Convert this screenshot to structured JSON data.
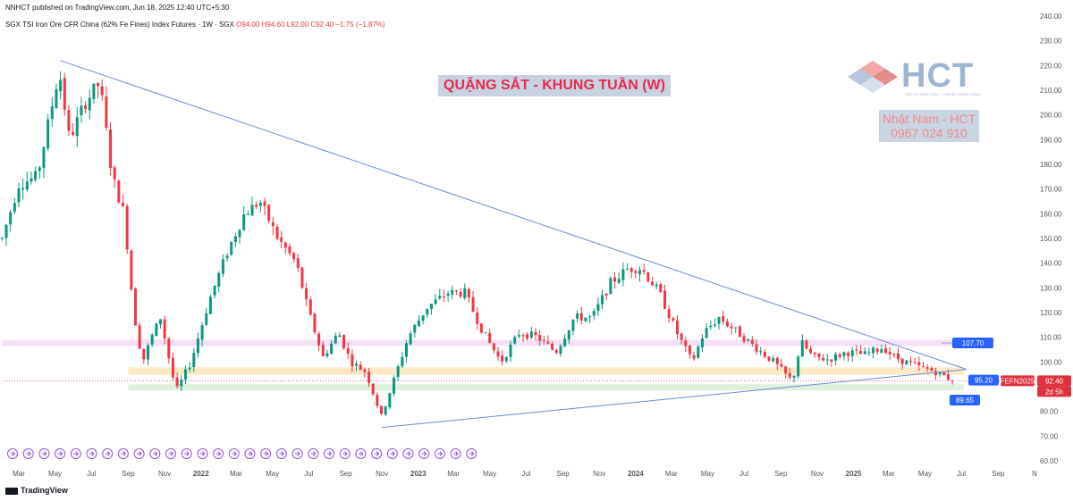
{
  "header": {
    "published": "NNHCT published on TradingView.com, Jun 18, 2025 12:40 UTC+5:30"
  },
  "legend": {
    "symbol": "SGX TSI Iron Ore CFR China (62% Fe Fines) Index Futures · 1W · SGX",
    "open": "O94.00",
    "high": "H94.60",
    "low": "L92.00",
    "close": "C92.40",
    "change": "−1.75 (−1.87%)"
  },
  "headline": "QUẶNG SẮT - KHUNG TUẦN (W)",
  "brand": {
    "name": "HCT",
    "tagline": "ĐẦU TƯ HÀNG HÓA - CHIA SẺ THÀNH CÔNG",
    "contact_name": "Nhật Nam - HCT",
    "contact_phone": "0967 024 910"
  },
  "footer": {
    "logo_text": "TradingView"
  },
  "colors": {
    "up": "#089981",
    "down": "#f23645",
    "trendline": "#6b8cd8",
    "band_pink": "#f3d6f3",
    "band_orange": "#fde2b3",
    "band_green": "#d2ebd0",
    "label_blue": "#2962ff",
    "price_red": "#e0313f",
    "event_icon": "#8e57d6"
  },
  "chart_data": {
    "type": "candlestick",
    "timeframe": "1W",
    "y_axis": {
      "ylim": [
        60,
        240
      ],
      "ticks": [
        "240.00",
        "230.00",
        "220.00",
        "210.00",
        "200.00",
        "190.00",
        "180.00",
        "170.00",
        "160.00",
        "150.00",
        "140.00",
        "130.00",
        "120.00",
        "110.00",
        "100.00",
        "90.00",
        "80.00",
        "70.00",
        "60.00"
      ]
    },
    "x_axis": {
      "ticks": [
        {
          "label": "Mar",
          "date": "2021-03-01",
          "bold": false
        },
        {
          "label": "May",
          "date": "2021-05-01",
          "bold": false
        },
        {
          "label": "Jul",
          "date": "2021-07-01",
          "bold": false
        },
        {
          "label": "Sep",
          "date": "2021-09-01",
          "bold": false
        },
        {
          "label": "Nov",
          "date": "2021-11-01",
          "bold": false
        },
        {
          "label": "2022",
          "date": "2022-01-01",
          "bold": true
        },
        {
          "label": "Mar",
          "date": "2022-03-01",
          "bold": false
        },
        {
          "label": "May",
          "date": "2022-05-01",
          "bold": false
        },
        {
          "label": "Jul",
          "date": "2022-07-01",
          "bold": false
        },
        {
          "label": "Sep",
          "date": "2022-09-01",
          "bold": false
        },
        {
          "label": "Nov",
          "date": "2022-11-01",
          "bold": false
        },
        {
          "label": "2023",
          "date": "2023-01-01",
          "bold": true
        },
        {
          "label": "Mar",
          "date": "2023-03-01",
          "bold": false
        },
        {
          "label": "May",
          "date": "2023-05-01",
          "bold": false
        },
        {
          "label": "Jul",
          "date": "2023-07-01",
          "bold": false
        },
        {
          "label": "Sep",
          "date": "2023-09-01",
          "bold": false
        },
        {
          "label": "Nov",
          "date": "2023-11-01",
          "bold": false
        },
        {
          "label": "2024",
          "date": "2024-01-01",
          "bold": true
        },
        {
          "label": "Mar",
          "date": "2024-03-01",
          "bold": false
        },
        {
          "label": "May",
          "date": "2024-05-01",
          "bold": false
        },
        {
          "label": "Jul",
          "date": "2024-07-01",
          "bold": false
        },
        {
          "label": "Sep",
          "date": "2024-09-01",
          "bold": false
        },
        {
          "label": "Nov",
          "date": "2024-11-01",
          "bold": false
        },
        {
          "label": "2025",
          "date": "2025-01-01",
          "bold": true
        },
        {
          "label": "Mar",
          "date": "2025-03-01",
          "bold": false
        },
        {
          "label": "May",
          "date": "2025-05-01",
          "bold": false
        },
        {
          "label": "Jul",
          "date": "2025-07-01",
          "bold": false
        },
        {
          "label": "Sep",
          "date": "2025-09-01",
          "bold": false
        },
        {
          "label": "N",
          "date": "2025-11-01",
          "bold": false
        }
      ]
    },
    "price_path": [
      [
        "2021-02-01",
        150
      ],
      [
        "2021-03-01",
        172
      ],
      [
        "2021-04-01",
        175
      ],
      [
        "2021-05-08",
        218
      ],
      [
        "2021-05-25",
        190
      ],
      [
        "2021-06-20",
        205
      ],
      [
        "2021-07-15",
        213
      ],
      [
        "2021-08-05",
        175
      ],
      [
        "2021-08-25",
        160
      ],
      [
        "2021-09-10",
        120
      ],
      [
        "2021-09-25",
        100
      ],
      [
        "2021-10-10",
        110
      ],
      [
        "2021-10-25",
        118
      ],
      [
        "2021-11-20",
        88
      ],
      [
        "2021-12-15",
        100
      ],
      [
        "2022-01-15",
        125
      ],
      [
        "2022-02-15",
        145
      ],
      [
        "2022-03-15",
        160
      ],
      [
        "2022-04-10",
        165
      ],
      [
        "2022-05-10",
        150
      ],
      [
        "2022-06-10",
        140
      ],
      [
        "2022-07-01",
        120
      ],
      [
        "2022-07-25",
        102
      ],
      [
        "2022-08-20",
        112
      ],
      [
        "2022-09-10",
        100
      ],
      [
        "2022-10-05",
        96
      ],
      [
        "2022-10-31",
        78
      ],
      [
        "2022-11-20",
        92
      ],
      [
        "2022-12-15",
        110
      ],
      [
        "2023-01-15",
        122
      ],
      [
        "2023-02-20",
        128
      ],
      [
        "2023-03-20",
        128
      ],
      [
        "2023-04-20",
        112
      ],
      [
        "2023-05-20",
        100
      ],
      [
        "2023-06-20",
        112
      ],
      [
        "2023-07-20",
        110
      ],
      [
        "2023-08-20",
        104
      ],
      [
        "2023-09-20",
        118
      ],
      [
        "2023-10-20",
        118
      ],
      [
        "2023-11-20",
        132
      ],
      [
        "2023-12-20",
        138
      ],
      [
        "2024-01-10",
        138
      ],
      [
        "2024-02-10",
        128
      ],
      [
        "2024-03-10",
        112
      ],
      [
        "2024-04-05",
        100
      ],
      [
        "2024-04-25",
        112
      ],
      [
        "2024-05-20",
        118
      ],
      [
        "2024-06-20",
        112
      ],
      [
        "2024-07-20",
        106
      ],
      [
        "2024-08-20",
        100
      ],
      [
        "2024-09-20",
        92
      ],
      [
        "2024-10-05",
        108
      ],
      [
        "2024-10-25",
        102
      ],
      [
        "2024-11-20",
        101
      ],
      [
        "2024-12-20",
        104
      ],
      [
        "2025-01-20",
        103
      ],
      [
        "2025-02-20",
        106
      ],
      [
        "2025-03-10",
        102
      ],
      [
        "2025-03-30",
        100
      ],
      [
        "2025-04-20",
        98
      ],
      [
        "2025-05-20",
        96
      ],
      [
        "2025-06-18",
        92.4
      ]
    ],
    "last_candle": {
      "date": "2025-06-16",
      "open": 94.0,
      "high": 94.6,
      "low": 92.0,
      "close": 92.4,
      "change": -1.75,
      "change_pct": -1.87
    },
    "trendlines": [
      {
        "name": "descending-resistance",
        "from": [
          "2021-05-10",
          222
        ],
        "to": [
          "2025-07-10",
          97
        ]
      },
      {
        "name": "ascending-support",
        "from": [
          "2022-11-01",
          73.5
        ],
        "to": [
          "2025-07-10",
          97
        ]
      }
    ],
    "zones": [
      {
        "name": "band-pink",
        "y0": 106.5,
        "y1": 109.0,
        "from": "2021-02-01",
        "to": "2025-07-05"
      },
      {
        "name": "band-orange",
        "y0": 94.8,
        "y1": 97.8,
        "from": "2021-09-01",
        "to": "2025-07-05"
      },
      {
        "name": "band-green",
        "y0": 88.5,
        "y1": 91.0,
        "from": "2021-09-01",
        "to": "2025-07-05"
      }
    ],
    "price_labels": [
      {
        "text": "107.70",
        "value": 107.7,
        "kind": "level"
      },
      {
        "text": "95.20",
        "value": 95.2,
        "kind": "level"
      },
      {
        "text": "89.65",
        "value": 89.65,
        "kind": "level"
      },
      {
        "text": "FEFN2025",
        "value": 92.4,
        "kind": "symbol"
      },
      {
        "text": "92.40",
        "value": 92.4,
        "kind": "last"
      },
      {
        "text": "2d 5h",
        "value": 92.4,
        "kind": "countdown"
      }
    ],
    "current_price_line": 92.4,
    "event_markers": 30
  }
}
